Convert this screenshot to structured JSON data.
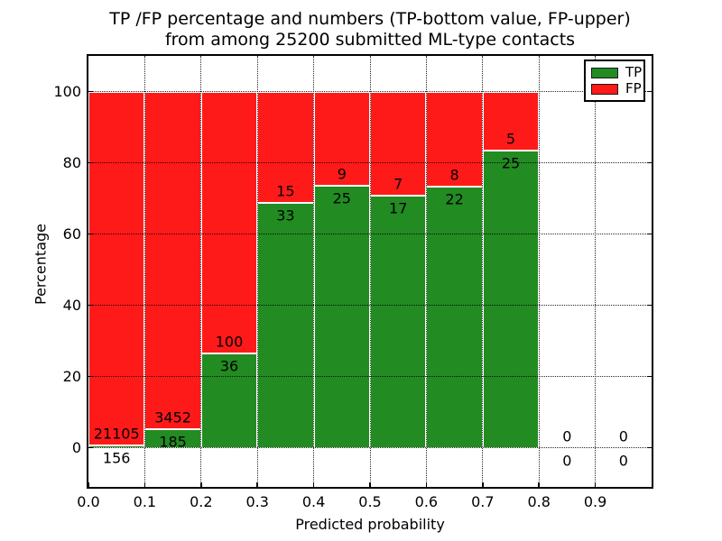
{
  "figure": {
    "title_line1": "TP /FP percentage and numbers (TP-bottom value, FP-upper)",
    "title_line2": "from among 25200 submitted ML-type contacts"
  },
  "chart_data": {
    "type": "bar",
    "stacked": true,
    "title": "TP /FP percentage and numbers (TP-bottom value, FP-upper) from among 25200 submitted ML-type contacts",
    "xlabel": "Predicted probability",
    "ylabel": "Percentage",
    "xlim": [
      0.0,
      1.0
    ],
    "ylim": [
      -11,
      110
    ],
    "grid": true,
    "legend_position": "upper right",
    "bin_starts": [
      0.0,
      0.1,
      0.2,
      0.3,
      0.4,
      0.5,
      0.6,
      0.7,
      0.8,
      0.9
    ],
    "bin_width": 0.1,
    "xticks": [
      "0.0",
      "0.1",
      "0.2",
      "0.3",
      "0.4",
      "0.5",
      "0.6",
      "0.7",
      "0.8",
      "0.9"
    ],
    "yticks": [
      0,
      20,
      40,
      60,
      80,
      100
    ],
    "series": [
      {
        "name": "TP",
        "color": "#228b22",
        "counts": [
          156,
          185,
          36,
          33,
          25,
          17,
          22,
          25,
          0,
          0
        ]
      },
      {
        "name": "FP",
        "color": "#ff1a1a",
        "counts": [
          21105,
          3452,
          100,
          15,
          9,
          7,
          8,
          5,
          0,
          0
        ]
      }
    ],
    "tp_percent_of_bin": [
      0.73,
      5.09,
      26.47,
      68.75,
      73.53,
      70.83,
      73.33,
      83.33,
      0,
      0
    ],
    "bar_total_percent": 100
  },
  "colors": {
    "tp_green": "#228b22",
    "fp_red": "#ff1a1a",
    "frame_black": "#000000",
    "background_white": "#ffffff"
  }
}
